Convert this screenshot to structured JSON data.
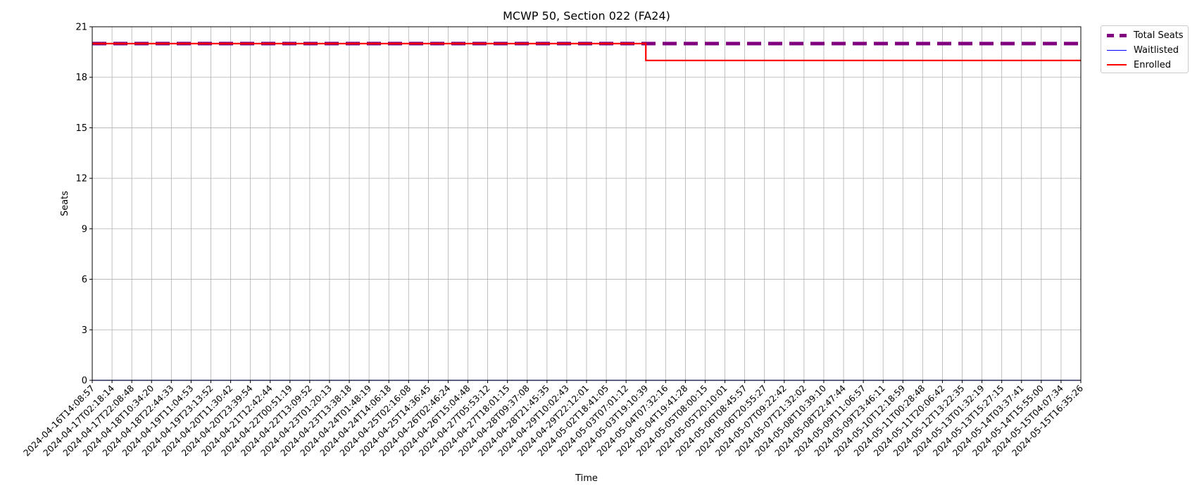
{
  "chart_data": {
    "type": "line",
    "title": "MCWP 50, Section 022 (FA24)",
    "xlabel": "Time",
    "ylabel": "Seats",
    "ylim": [
      0,
      21
    ],
    "yticks": [
      0,
      3,
      6,
      9,
      12,
      15,
      18,
      21
    ],
    "grid": true,
    "legend_position": "outside-top-right",
    "x": [
      "2024-04-16T14:08:57",
      "2024-04-17T02:18:14",
      "2024-04-17T22:08:48",
      "2024-04-18T10:34:20",
      "2024-04-18T22:44:33",
      "2024-04-19T11:04:53",
      "2024-04-19T23:13:52",
      "2024-04-20T11:30:42",
      "2024-04-20T23:39:54",
      "2024-04-21T12:42:44",
      "2024-04-22T00:51:19",
      "2024-04-22T13:09:52",
      "2024-04-23T01:20:13",
      "2024-04-23T13:38:18",
      "2024-04-24T01:48:19",
      "2024-04-24T14:06:18",
      "2024-04-25T02:16:08",
      "2024-04-25T14:36:45",
      "2024-04-26T02:46:24",
      "2024-04-26T15:04:48",
      "2024-04-27T05:53:12",
      "2024-04-27T18:01:15",
      "2024-04-28T09:37:08",
      "2024-04-28T21:45:35",
      "2024-04-29T10:02:43",
      "2024-04-29T22:12:01",
      "2024-05-02T18:41:05",
      "2024-05-03T07:01:12",
      "2024-05-03T19:10:39",
      "2024-05-04T07:32:16",
      "2024-05-04T19:41:28",
      "2024-05-05T08:00:15",
      "2024-05-05T20:10:01",
      "2024-05-06T08:45:57",
      "2024-05-06T20:55:27",
      "2024-05-07T09:22:42",
      "2024-05-07T21:32:02",
      "2024-05-08T10:39:10",
      "2024-05-08T22:47:44",
      "2024-05-09T11:06:57",
      "2024-05-09T23:46:11",
      "2024-05-10T12:18:59",
      "2024-05-11T00:28:48",
      "2024-05-11T20:06:42",
      "2024-05-12T13:22:35",
      "2024-05-13T01:32:19",
      "2024-05-13T15:27:15",
      "2024-05-14T03:37:41",
      "2024-05-14T15:55:00",
      "2024-05-15T04:07:34",
      "2024-05-15T16:35:26"
    ],
    "series": [
      {
        "name": "Total Seats",
        "color": "#800080",
        "style": "dashed",
        "values": [
          20,
          20,
          20,
          20,
          20,
          20,
          20,
          20,
          20,
          20,
          20,
          20,
          20,
          20,
          20,
          20,
          20,
          20,
          20,
          20,
          20,
          20,
          20,
          20,
          20,
          20,
          20,
          20,
          20,
          20,
          20,
          20,
          20,
          20,
          20,
          20,
          20,
          20,
          20,
          20,
          20,
          20,
          20,
          20,
          20,
          20,
          20,
          20,
          20,
          20,
          20
        ]
      },
      {
        "name": "Waitlisted",
        "color": "#0000ff",
        "style": "solid-thin",
        "values": [
          0,
          0,
          0,
          0,
          0,
          0,
          0,
          0,
          0,
          0,
          0,
          0,
          0,
          0,
          0,
          0,
          0,
          0,
          0,
          0,
          0,
          0,
          0,
          0,
          0,
          0,
          0,
          0,
          0,
          0,
          0,
          0,
          0,
          0,
          0,
          0,
          0,
          0,
          0,
          0,
          0,
          0,
          0,
          0,
          0,
          0,
          0,
          0,
          0,
          0,
          0
        ]
      },
      {
        "name": "Enrolled",
        "color": "#ff0000",
        "style": "solid",
        "values": [
          20,
          20,
          20,
          20,
          20,
          20,
          20,
          20,
          20,
          20,
          20,
          20,
          20,
          20,
          20,
          20,
          20,
          20,
          20,
          20,
          20,
          20,
          20,
          20,
          20,
          20,
          20,
          20,
          19,
          19,
          19,
          19,
          19,
          19,
          19,
          19,
          19,
          19,
          19,
          19,
          19,
          19,
          19,
          19,
          19,
          19,
          19,
          19,
          19,
          19,
          19
        ]
      }
    ]
  }
}
